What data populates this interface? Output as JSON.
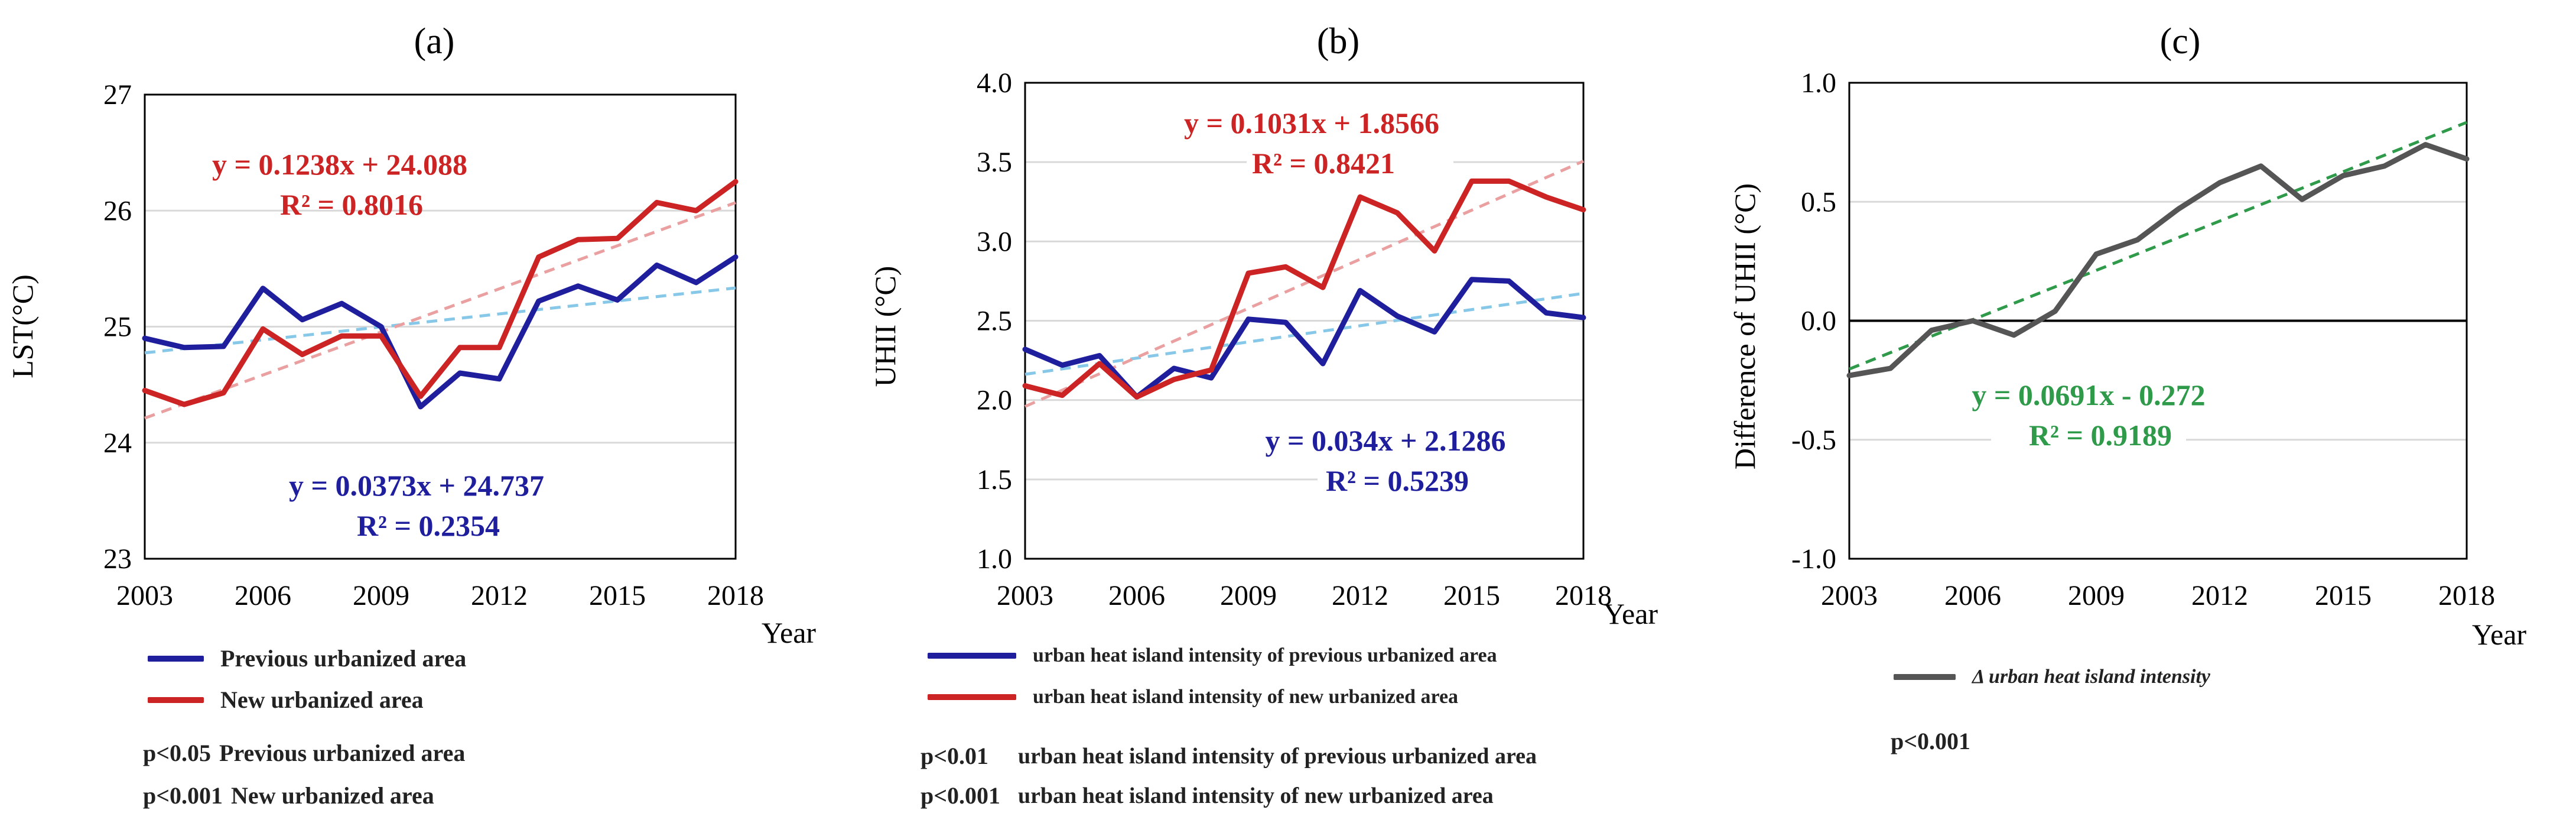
{
  "chart_data": [
    {
      "panel_label": "(a)",
      "type": "line",
      "ylabel": "LST(°C)",
      "xlabel": "Year",
      "ylim": [
        23,
        27
      ],
      "yticks": [
        "23",
        "24",
        "25",
        "26",
        "27"
      ],
      "xlim": [
        2003,
        2018
      ],
      "xticks": [
        "2003",
        "2006",
        "2009",
        "2012",
        "2015",
        "2018"
      ],
      "x": [
        2003,
        2004,
        2005,
        2006,
        2007,
        2008,
        2009,
        2010,
        2011,
        2012,
        2013,
        2014,
        2015,
        2016,
        2017,
        2018
      ],
      "series": [
        {
          "name": "Previous urbanized area",
          "color": "#1f1f9e",
          "values": [
            24.9,
            24.82,
            24.83,
            25.33,
            25.06,
            25.2,
            25.0,
            24.31,
            24.6,
            24.55,
            25.22,
            25.35,
            25.23,
            25.53,
            25.38,
            25.6
          ],
          "trend": {
            "color": "#87c8e8",
            "slope": 0.0373,
            "intercept": 24.737
          },
          "equation": "y = 0.0373x + 24.737",
          "r2": "R² = 0.2354"
        },
        {
          "name": "New urbanized area",
          "color": "#cc2424",
          "values": [
            24.45,
            24.33,
            24.43,
            24.98,
            24.76,
            24.92,
            24.92,
            24.4,
            24.82,
            24.82,
            25.6,
            25.75,
            25.76,
            26.07,
            26.0,
            26.25
          ],
          "trend": {
            "color": "#eaa0a0",
            "slope": 0.1238,
            "intercept": 24.088
          },
          "equation": "y = 0.1238x + 24.088",
          "r2": "R² = 0.8016"
        }
      ],
      "legend": [
        "Previous urbanized area",
        "New urbanized area"
      ],
      "pvalues": [
        {
          "p": "p<0.05",
          "label": "Previous urbanized area"
        },
        {
          "p": "p<0.001",
          "label": "New urbanized area"
        }
      ]
    },
    {
      "panel_label": "(b)",
      "type": "line",
      "ylabel": "UHII (°C)",
      "xlabel": "Year",
      "ylim": [
        1.0,
        4.0
      ],
      "yticks": [
        "1.0",
        "1.5",
        "2.0",
        "2.5",
        "3.0",
        "3.5",
        "4.0"
      ],
      "xlim": [
        2003,
        2018
      ],
      "xticks": [
        "2003",
        "2006",
        "2009",
        "2012",
        "2015",
        "2018"
      ],
      "x": [
        2003,
        2004,
        2005,
        2006,
        2007,
        2008,
        2009,
        2010,
        2011,
        2012,
        2013,
        2014,
        2015,
        2016,
        2017,
        2018
      ],
      "series": [
        {
          "name": "urban heat island intensity of previous urbanized area",
          "color": "#1f1f9e",
          "values": [
            2.32,
            2.22,
            2.28,
            2.02,
            2.2,
            2.14,
            2.51,
            2.49,
            2.23,
            2.69,
            2.53,
            2.43,
            2.76,
            2.75,
            2.55,
            2.52
          ],
          "trend": {
            "color": "#87c8e8",
            "slope": 0.034,
            "intercept": 2.1286
          },
          "equation": "y = 0.034x + 2.1286",
          "r2": "R² = 0.5239"
        },
        {
          "name": "urban heat island intensity of  new urbanized area",
          "color": "#cc2424",
          "values": [
            2.09,
            2.03,
            2.23,
            2.02,
            2.13,
            2.19,
            2.8,
            2.84,
            2.71,
            3.28,
            3.18,
            2.94,
            3.38,
            3.38,
            3.28,
            3.2
          ],
          "trend": {
            "color": "#eaa0a0",
            "slope": 0.1031,
            "intercept": 1.8566
          },
          "equation": "y = 0.1031x + 1.8566",
          "r2": "R² = 0.8421"
        }
      ],
      "legend": [
        "urban heat island intensity of previous urbanized area",
        "urban heat island intensity of  new urbanized area"
      ],
      "pvalues": [
        {
          "p": "p<0.01",
          "label": "urban heat island intensity of previous urbanized area"
        },
        {
          "p": "p<0.001",
          "label": "urban heat island intensity of  new urbanized area"
        }
      ]
    },
    {
      "panel_label": "(c)",
      "type": "line",
      "ylabel": "Difference of UHII (°C)",
      "xlabel": "Year",
      "ylim": [
        -1.0,
        1.0
      ],
      "yticks": [
        "-1.0",
        "-0.5",
        "0.0",
        "0.5",
        "1.0"
      ],
      "xlim": [
        2003,
        2018
      ],
      "xticks": [
        "2003",
        "2006",
        "2009",
        "2012",
        "2015",
        "2018"
      ],
      "x": [
        2003,
        2004,
        2005,
        2006,
        2007,
        2008,
        2009,
        2010,
        2011,
        2012,
        2013,
        2014,
        2015,
        2016,
        2017,
        2018
      ],
      "series": [
        {
          "name": "Δ urban heat island intensity",
          "color": "#555555",
          "values": [
            -0.23,
            -0.2,
            -0.04,
            0.0,
            -0.06,
            0.04,
            0.28,
            0.34,
            0.47,
            0.58,
            0.65,
            0.51,
            0.61,
            0.65,
            0.74,
            0.68
          ],
          "trend": {
            "color": "#2e9a4a",
            "slope": 0.0691,
            "intercept": -0.272
          },
          "equation": "y = 0.0691x - 0.272",
          "r2": "R² = 0.9189"
        }
      ],
      "legend": [
        "Δ urban heat island intensity"
      ],
      "pvalues": [
        {
          "p": "p<0.001",
          "label": ""
        }
      ]
    }
  ]
}
